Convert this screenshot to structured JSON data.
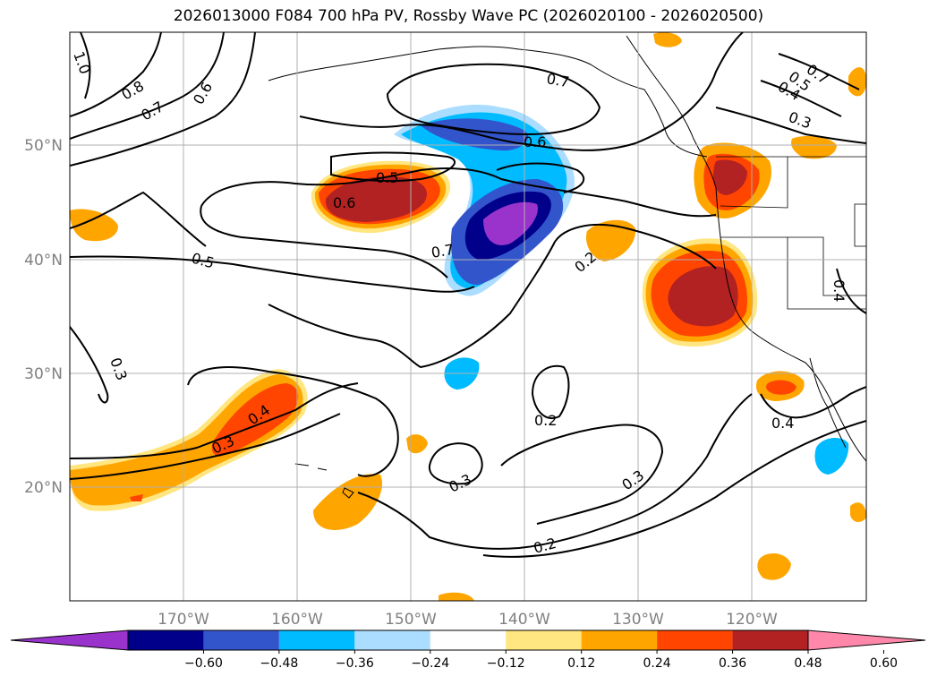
{
  "title": "2026013000 F084 700 hPa PV, Rossby Wave PC (2026020100 - 2026020500)",
  "latitude_labels": [
    "50°N",
    "40°N",
    "30°N",
    "20°N"
  ],
  "longitude_labels": [
    "170°W",
    "160°W",
    "150°W",
    "140°W",
    "130°W",
    "120°W"
  ],
  "colorbar": {
    "tick_labels": [
      "−0.60",
      "−0.48",
      "−0.36",
      "−0.24",
      "−0.12",
      "0.12",
      "0.24",
      "0.36",
      "0.48",
      "0.60"
    ],
    "colors": [
      "#9933cc",
      "#00008b",
      "#3355cc",
      "#00bbff",
      "#aaddff",
      "#ffffff",
      "#ffe680",
      "#ffa500",
      "#ff4500",
      "#b22222",
      "#ff88aa"
    ]
  },
  "contour_labels": [
    "1.0",
    "0.8",
    "0.7",
    "0.6",
    "0.7",
    "0.6",
    "0.5",
    "0.6",
    "0.5",
    "0.7",
    "0.2",
    "0.4",
    "0.4",
    "0.3",
    "0.3",
    "0.4",
    "0.3",
    "0.2",
    "0.3",
    "0.3",
    "0.2",
    "0.4",
    "0.5",
    "0.7"
  ]
}
